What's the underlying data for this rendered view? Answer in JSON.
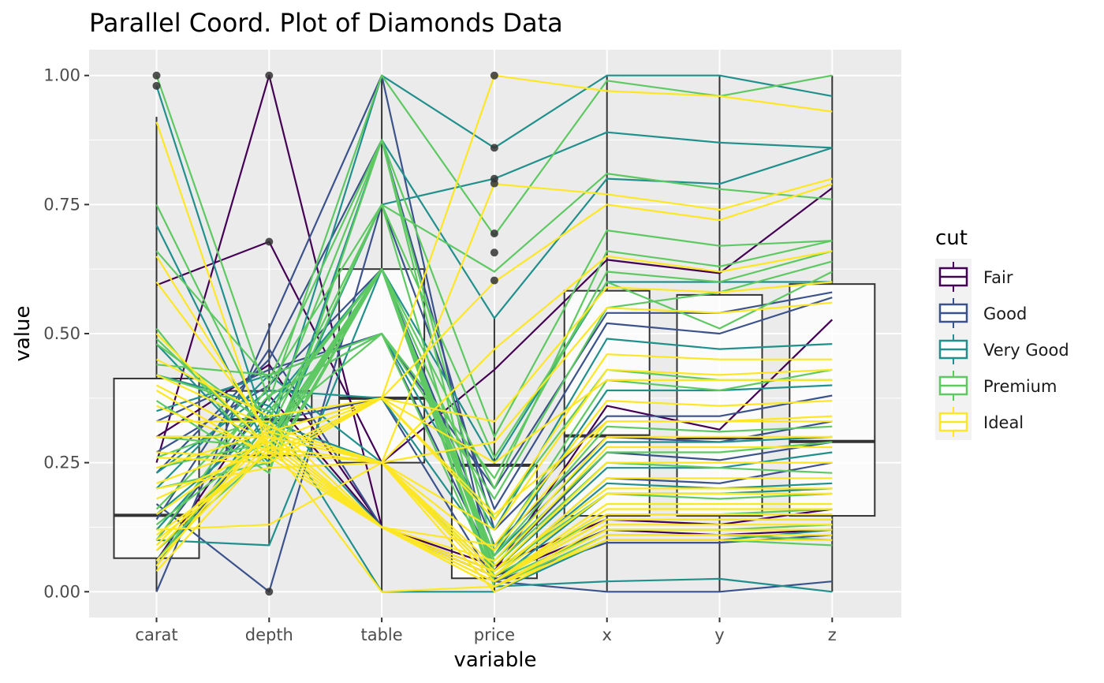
{
  "chart_data": {
    "type": "parallel-coordinates",
    "title": "Parallel Coord. Plot of Diamonds Data",
    "xlabel": "variable",
    "ylabel": "value",
    "variables": [
      "carat",
      "depth",
      "table",
      "price",
      "x",
      "y",
      "z"
    ],
    "yticks": [
      "0.00",
      "0.25",
      "0.50",
      "0.75",
      "1.00"
    ],
    "ylim": [
      -0.05,
      1.05
    ],
    "grid": true,
    "legend": {
      "title": "cut",
      "position": "right",
      "items": [
        {
          "name": "Fair",
          "color": "#440154"
        },
        {
          "name": "Good",
          "color": "#3b528b"
        },
        {
          "name": "Very Good",
          "color": "#21908c"
        },
        {
          "name": "Premium",
          "color": "#5ec962"
        },
        {
          "name": "Ideal",
          "color": "#fde725"
        }
      ]
    },
    "boxplots": [
      {
        "variable": "carat",
        "q1": 0.065,
        "median": 0.148,
        "q3": 0.413,
        "whisker_low": 0.0,
        "whisker_high": 0.92,
        "outliers": [
          0.98,
          1.0
        ]
      },
      {
        "variable": "depth",
        "q1": 0.264,
        "median": 0.333,
        "q3": 0.389,
        "whisker_low": 0.09,
        "whisker_high": 0.52,
        "outliers": [
          0.0,
          0.678,
          1.0
        ]
      },
      {
        "variable": "table",
        "q1": 0.25,
        "median": 0.375,
        "q3": 0.625,
        "whisker_low": 0.0,
        "whisker_high": 1.0,
        "outliers": []
      },
      {
        "variable": "price",
        "q1": 0.026,
        "median": 0.245,
        "q3": 0.245,
        "whisker_low": 0.0,
        "whisker_high": 0.53,
        "outliers": [
          0.603,
          0.657,
          0.694,
          0.791,
          0.8,
          0.86,
          1.0
        ]
      },
      {
        "variable": "x",
        "q1": 0.147,
        "median": 0.302,
        "q3": 0.583,
        "whisker_low": 0.0,
        "whisker_high": 1.0,
        "outliers": []
      },
      {
        "variable": "y",
        "q1": 0.147,
        "median": 0.298,
        "q3": 0.575,
        "whisker_low": 0.0,
        "whisker_high": 1.0,
        "outliers": []
      },
      {
        "variable": "z",
        "q1": 0.147,
        "median": 0.291,
        "q3": 0.596,
        "whisker_low": 0.0,
        "whisker_high": 1.0,
        "outliers": []
      }
    ],
    "series": [
      {
        "cut": "Fair",
        "values": [
          0.594,
          0.678,
          0.25,
          0.43,
          0.643,
          0.617,
          0.782
        ]
      },
      {
        "cut": "Fair",
        "values": [
          0.25,
          1.0,
          0.125,
          0.04,
          0.36,
          0.314,
          0.527
        ]
      },
      {
        "cut": "Fair",
        "values": [
          0.3,
          0.44,
          0.125,
          0.05,
          0.14,
          0.13,
          0.16
        ]
      },
      {
        "cut": "Fair",
        "values": [
          0.06,
          0.38,
          0.125,
          0.03,
          0.12,
          0.11,
          0.12
        ]
      },
      {
        "cut": "Good",
        "values": [
          0.0,
          0.51,
          1.0,
          0.02,
          0.0,
          0.0,
          0.02
        ]
      },
      {
        "cut": "Good",
        "values": [
          0.17,
          0.0,
          0.75,
          0.16,
          0.52,
          0.5,
          0.57
        ]
      },
      {
        "cut": "Good",
        "values": [
          0.23,
          0.45,
          0.875,
          0.12,
          0.34,
          0.34,
          0.38
        ]
      },
      {
        "cut": "Good",
        "values": [
          0.1,
          0.38,
          0.5,
          0.05,
          0.27,
          0.255,
          0.29
        ]
      },
      {
        "cut": "Good",
        "values": [
          0.05,
          0.33,
          0.375,
          0.02,
          0.095,
          0.095,
          0.11
        ]
      },
      {
        "cut": "Good",
        "values": [
          0.14,
          0.47,
          0.125,
          0.03,
          0.22,
          0.21,
          0.25
        ]
      },
      {
        "cut": "Good",
        "values": [
          0.27,
          0.4,
          0.625,
          0.09,
          0.3,
          0.29,
          0.33
        ]
      },
      {
        "cut": "Good",
        "values": [
          0.33,
          0.43,
          0.5,
          0.2,
          0.54,
          0.54,
          0.58
        ]
      },
      {
        "cut": "Very Good",
        "values": [
          0.98,
          0.3,
          1.0,
          0.86,
          1.0,
          1.0,
          0.96
        ]
      },
      {
        "cut": "Very Good",
        "values": [
          0.71,
          0.27,
          0.75,
          0.8,
          0.89,
          0.87,
          0.86
        ]
      },
      {
        "cut": "Very Good",
        "values": [
          0.48,
          0.25,
          0.875,
          0.53,
          0.8,
          0.79,
          0.86
        ]
      },
      {
        "cut": "Very Good",
        "values": [
          0.42,
          0.36,
          0.625,
          0.25,
          0.6,
          0.6,
          0.6
        ]
      },
      {
        "cut": "Very Good",
        "values": [
          0.35,
          0.42,
          0.5,
          0.12,
          0.49,
          0.47,
          0.48
        ]
      },
      {
        "cut": "Very Good",
        "values": [
          0.23,
          0.39,
          0.375,
          0.07,
          0.39,
          0.39,
          0.4
        ]
      },
      {
        "cut": "Very Good",
        "values": [
          0.1,
          0.09,
          0.625,
          0.01,
          0.02,
          0.025,
          0.0
        ]
      },
      {
        "cut": "Very Good",
        "values": [
          0.15,
          0.33,
          0.25,
          0.03,
          0.21,
          0.2,
          0.21
        ]
      },
      {
        "cut": "Very Good",
        "values": [
          0.12,
          0.36,
          0.125,
          0.02,
          0.19,
          0.19,
          0.2
        ]
      },
      {
        "cut": "Very Good",
        "values": [
          0.05,
          0.35,
          0.0,
          0.0,
          0.1,
          0.1,
          0.12
        ]
      },
      {
        "cut": "Very Good",
        "values": [
          0.2,
          0.42,
          0.25,
          0.04,
          0.24,
          0.24,
          0.27
        ]
      },
      {
        "cut": "Very Good",
        "values": [
          0.3,
          0.3,
          0.625,
          0.07,
          0.29,
          0.29,
          0.3
        ]
      },
      {
        "cut": "Premium",
        "values": [
          1.0,
          0.37,
          1.0,
          0.69,
          0.99,
          0.96,
          1.0
        ]
      },
      {
        "cut": "Premium",
        "values": [
          0.75,
          0.31,
          0.75,
          0.62,
          0.81,
          0.78,
          0.76
        ]
      },
      {
        "cut": "Premium",
        "values": [
          0.66,
          0.41,
          0.875,
          0.3,
          0.7,
          0.67,
          0.68
        ]
      },
      {
        "cut": "Premium",
        "values": [
          0.51,
          0.24,
          0.625,
          0.2,
          0.66,
          0.63,
          0.68
        ]
      },
      {
        "cut": "Premium",
        "values": [
          0.49,
          0.28,
          0.75,
          0.26,
          0.6,
          0.51,
          0.62
        ]
      },
      {
        "cut": "Premium",
        "values": [
          0.48,
          0.32,
          0.5,
          0.18,
          0.55,
          0.58,
          0.64
        ]
      },
      {
        "cut": "Premium",
        "values": [
          0.42,
          0.35,
          0.625,
          0.14,
          0.43,
          0.41,
          0.41
        ]
      },
      {
        "cut": "Premium",
        "values": [
          0.37,
          0.23,
          0.875,
          0.08,
          0.41,
          0.39,
          0.43
        ]
      },
      {
        "cut": "Premium",
        "values": [
          0.3,
          0.28,
          0.625,
          0.07,
          0.32,
          0.31,
          0.32
        ]
      },
      {
        "cut": "Premium",
        "values": [
          0.26,
          0.34,
          0.625,
          0.05,
          0.25,
          0.24,
          0.23
        ]
      },
      {
        "cut": "Premium",
        "values": [
          0.2,
          0.25,
          0.625,
          0.04,
          0.19,
          0.18,
          0.19
        ]
      },
      {
        "cut": "Premium",
        "values": [
          0.16,
          0.38,
          0.5,
          0.03,
          0.15,
          0.15,
          0.16
        ]
      },
      {
        "cut": "Premium",
        "values": [
          0.13,
          0.3,
          0.625,
          0.02,
          0.14,
          0.14,
          0.14
        ]
      },
      {
        "cut": "Premium",
        "values": [
          0.1,
          0.4,
          0.75,
          0.02,
          0.12,
          0.12,
          0.13
        ]
      },
      {
        "cut": "Premium",
        "values": [
          0.08,
          0.27,
          0.625,
          0.01,
          0.11,
          0.11,
          0.1
        ]
      },
      {
        "cut": "Premium",
        "values": [
          0.06,
          0.33,
          0.875,
          0.01,
          0.1,
          0.1,
          0.09
        ]
      },
      {
        "cut": "Premium",
        "values": [
          0.44,
          0.42,
          0.5,
          0.22,
          0.62,
          0.6,
          0.66
        ]
      },
      {
        "cut": "Premium",
        "values": [
          0.24,
          0.29,
          0.625,
          0.06,
          0.27,
          0.27,
          0.29
        ]
      },
      {
        "cut": "Ideal",
        "values": [
          0.91,
          0.27,
          0.375,
          1.0,
          0.97,
          0.96,
          0.93
        ]
      },
      {
        "cut": "Ideal",
        "values": [
          0.65,
          0.3,
          0.25,
          0.79,
          0.77,
          0.74,
          0.8
        ]
      },
      {
        "cut": "Ideal",
        "values": [
          0.6,
          0.31,
          0.375,
          0.6,
          0.75,
          0.72,
          0.79
        ]
      },
      {
        "cut": "Ideal",
        "values": [
          0.5,
          0.28,
          0.25,
          0.47,
          0.65,
          0.62,
          0.66
        ]
      },
      {
        "cut": "Ideal",
        "values": [
          0.45,
          0.34,
          0.375,
          0.33,
          0.59,
          0.58,
          0.6
        ]
      },
      {
        "cut": "Ideal",
        "values": [
          0.42,
          0.32,
          0.25,
          0.29,
          0.55,
          0.54,
          0.56
        ]
      },
      {
        "cut": "Ideal",
        "values": [
          0.4,
          0.29,
          0.375,
          0.14,
          0.46,
          0.45,
          0.45
        ]
      },
      {
        "cut": "Ideal",
        "values": [
          0.36,
          0.27,
          0.25,
          0.12,
          0.43,
          0.42,
          0.43
        ]
      },
      {
        "cut": "Ideal",
        "values": [
          0.33,
          0.33,
          0.125,
          0.09,
          0.37,
          0.36,
          0.37
        ]
      },
      {
        "cut": "Ideal",
        "values": [
          0.3,
          0.3,
          0.25,
          0.08,
          0.33,
          0.33,
          0.34
        ]
      },
      {
        "cut": "Ideal",
        "values": [
          0.27,
          0.26,
          0.125,
          0.06,
          0.3,
          0.3,
          0.3
        ]
      },
      {
        "cut": "Ideal",
        "values": [
          0.24,
          0.31,
          0.25,
          0.05,
          0.28,
          0.28,
          0.28
        ]
      },
      {
        "cut": "Ideal",
        "values": [
          0.21,
          0.29,
          0.125,
          0.04,
          0.25,
          0.25,
          0.25
        ]
      },
      {
        "cut": "Ideal",
        "values": [
          0.18,
          0.28,
          0.25,
          0.03,
          0.22,
          0.22,
          0.22
        ]
      },
      {
        "cut": "Ideal",
        "values": [
          0.15,
          0.3,
          0.125,
          0.03,
          0.19,
          0.19,
          0.19
        ]
      },
      {
        "cut": "Ideal",
        "values": [
          0.12,
          0.13,
          0.25,
          0.02,
          0.17,
          0.17,
          0.17
        ]
      },
      {
        "cut": "Ideal",
        "values": [
          0.1,
          0.27,
          0.125,
          0.02,
          0.15,
          0.15,
          0.15
        ]
      },
      {
        "cut": "Ideal",
        "values": [
          0.08,
          0.3,
          0.125,
          0.01,
          0.13,
          0.13,
          0.13
        ]
      },
      {
        "cut": "Ideal",
        "values": [
          0.06,
          0.29,
          0.0,
          0.01,
          0.12,
          0.12,
          0.12
        ]
      },
      {
        "cut": "Ideal",
        "values": [
          0.04,
          0.28,
          0.125,
          0.01,
          0.1,
          0.1,
          0.1
        ]
      },
      {
        "cut": "Ideal",
        "values": [
          0.05,
          0.32,
          0.25,
          0.0,
          0.11,
          0.11,
          0.11
        ]
      },
      {
        "cut": "Ideal",
        "values": [
          0.26,
          0.25,
          0.375,
          0.15,
          0.33,
          0.33,
          0.33
        ]
      },
      {
        "cut": "Ideal",
        "values": [
          0.39,
          0.26,
          0.375,
          0.25,
          0.41,
          0.41,
          0.41
        ]
      },
      {
        "cut": "Ideal",
        "values": [
          0.11,
          0.27,
          0.125,
          0.02,
          0.14,
          0.14,
          0.14
        ]
      },
      {
        "cut": "Ideal",
        "values": [
          0.09,
          0.31,
          0.125,
          0.02,
          0.16,
          0.16,
          0.16
        ]
      },
      {
        "cut": "Ideal",
        "values": [
          0.2,
          0.24,
          0.25,
          0.04,
          0.2,
          0.2,
          0.2
        ]
      }
    ]
  }
}
